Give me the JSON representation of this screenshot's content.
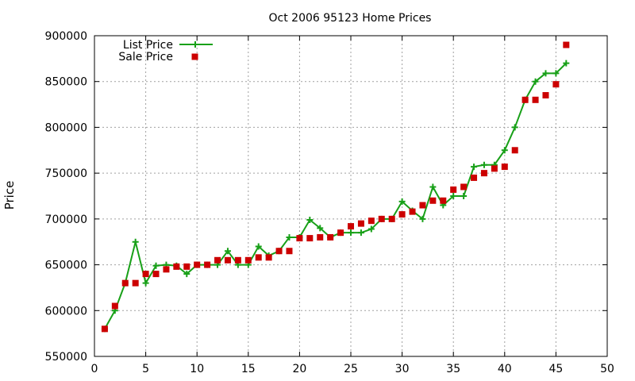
{
  "chart_data": {
    "type": "line",
    "title": "Oct 2006 95123 Home Prices",
    "xlabel": "",
    "ylabel": "Price",
    "xlim": [
      0,
      50
    ],
    "ylim": [
      550000,
      900000
    ],
    "x_ticks": [
      "0",
      "5",
      "10",
      "15",
      "20",
      "25",
      "30",
      "35",
      "40",
      "45",
      "50"
    ],
    "y_ticks": [
      "550000",
      "600000",
      "650000",
      "700000",
      "750000",
      "800000",
      "850000",
      "900000"
    ],
    "grid": true,
    "legend_position": "top-left",
    "series": [
      {
        "name": "List Price",
        "style": "line-plus",
        "color": "#18a018",
        "x": [
          1,
          2,
          3,
          4,
          5,
          6,
          7,
          8,
          9,
          10,
          11,
          12,
          13,
          14,
          15,
          16,
          17,
          18,
          19,
          20,
          21,
          22,
          23,
          24,
          25,
          26,
          27,
          28,
          29,
          30,
          31,
          32,
          33,
          34,
          35,
          36,
          37,
          38,
          39,
          40,
          41,
          42,
          43,
          44,
          45,
          46
        ],
        "y": [
          580000,
          600000,
          630000,
          675000,
          630000,
          649000,
          650000,
          649000,
          640000,
          650000,
          650000,
          650000,
          665000,
          650000,
          650000,
          670000,
          660000,
          665000,
          680000,
          680000,
          699000,
          690000,
          680000,
          685000,
          685000,
          685000,
          689000,
          700000,
          700000,
          719000,
          709000,
          700000,
          735000,
          715000,
          725000,
          725000,
          757000,
          759000,
          759000,
          775000,
          800000,
          830000,
          850000,
          859000,
          859000,
          870000
        ]
      },
      {
        "name": "Sale Price",
        "style": "square",
        "color": "#cc0000",
        "x": [
          1,
          2,
          3,
          4,
          5,
          6,
          7,
          8,
          9,
          10,
          11,
          12,
          13,
          14,
          15,
          16,
          17,
          18,
          19,
          20,
          21,
          22,
          23,
          24,
          25,
          26,
          27,
          28,
          29,
          30,
          31,
          32,
          33,
          34,
          35,
          36,
          37,
          38,
          39,
          40,
          41,
          42,
          43,
          44,
          45,
          46
        ],
        "y": [
          580000,
          605000,
          630000,
          630000,
          640000,
          640000,
          645000,
          648000,
          648000,
          650000,
          650000,
          655000,
          655000,
          655000,
          655000,
          658000,
          658000,
          665000,
          665000,
          679000,
          679000,
          680000,
          680000,
          685000,
          692000,
          695000,
          698000,
          700000,
          700000,
          705000,
          708000,
          715000,
          720000,
          720000,
          732000,
          735000,
          745000,
          750000,
          755000,
          757000,
          775000,
          830000,
          830000,
          835000,
          847000,
          890000
        ]
      }
    ]
  }
}
